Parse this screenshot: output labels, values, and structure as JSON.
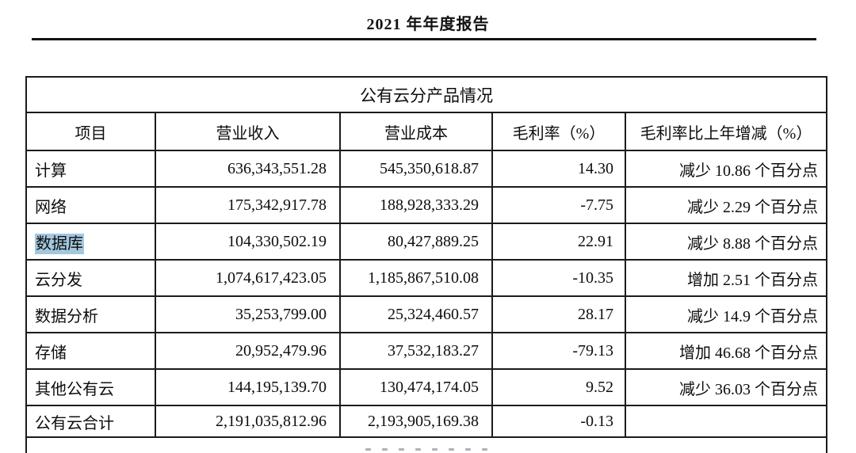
{
  "page": {
    "header_title": "2021 年年度报告"
  },
  "table": {
    "title": "公有云分产品情况",
    "columns": [
      "项目",
      "营业收入",
      "营业成本",
      "毛利率（%）",
      "毛利率比上年增减（%）"
    ],
    "rows": [
      {
        "item": "计算",
        "revenue": "636,343,551.28",
        "cost": "545,350,618.87",
        "margin": "14.30",
        "change": "减少 10.86 个百分点",
        "highlighted": false,
        "total": false
      },
      {
        "item": "网络",
        "revenue": "175,342,917.78",
        "cost": "188,928,333.29",
        "margin": "-7.75",
        "change": "减少 2.29 个百分点",
        "highlighted": false,
        "total": false
      },
      {
        "item": "数据库",
        "revenue": "104,330,502.19",
        "cost": "80,427,889.25",
        "margin": "22.91",
        "change": "减少 8.88 个百分点",
        "highlighted": true,
        "total": false
      },
      {
        "item": "云分发",
        "revenue": "1,074,617,423.05",
        "cost": "1,185,867,510.08",
        "margin": "-10.35",
        "change": "增加 2.51 个百分点",
        "highlighted": false,
        "total": false
      },
      {
        "item": "数据分析",
        "revenue": "35,253,799.00",
        "cost": "25,324,460.57",
        "margin": "28.17",
        "change": "减少 14.9 个百分点",
        "highlighted": false,
        "total": false
      },
      {
        "item": "存储",
        "revenue": "20,952,479.96",
        "cost": "37,532,183.27",
        "margin": "-79.13",
        "change": "增加 46.68 个百分点",
        "highlighted": false,
        "total": false
      },
      {
        "item": "其他公有云",
        "revenue": "144,195,139.70",
        "cost": "130,474,174.05",
        "margin": "9.52",
        "change": "减少 36.03 个百分点",
        "highlighted": false,
        "total": false
      },
      {
        "item": "公有云合计",
        "revenue": "2,191,035,812.96",
        "cost": "2,193,905,169.38",
        "margin": "-0.13",
        "change": "",
        "highlighted": false,
        "total": true
      }
    ],
    "selection_highlight_color": "#a3c7de"
  }
}
